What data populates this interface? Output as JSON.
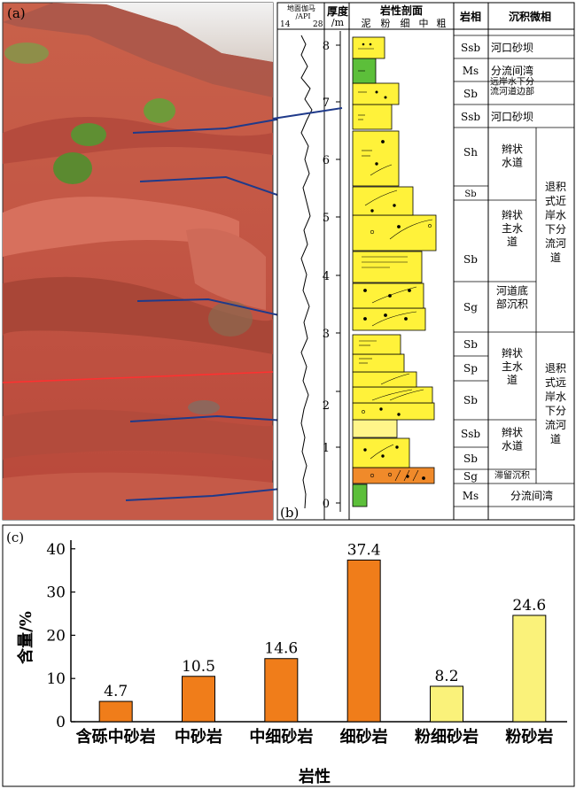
{
  "photo_panel": {
    "label": "(a)"
  },
  "section_panel": {
    "label": "(b)",
    "gamma_header_line1": "地面伽马",
    "gamma_header_line2": "/API",
    "gamma_min": "14",
    "gamma_max": "28",
    "thickness_header_line1": "厚度",
    "thickness_header_line2": "/m",
    "litho_header": "岩性剖面",
    "grain_scale": [
      "泥",
      "粉",
      "细",
      "中",
      "粗"
    ],
    "facies_header": "岩相",
    "microfacies_header": "沉积微相",
    "depth_ticks": [
      "0",
      "1",
      "2",
      "3",
      "4",
      "5",
      "6",
      "7",
      "8"
    ],
    "facies": [
      "Ssb",
      "Ms",
      "Sb",
      "Ssb",
      "Sh",
      "Sb",
      "Sb",
      "Sg",
      "Sb",
      "Sp",
      "Sb",
      "Ssb",
      "Sb",
      "Sg",
      "Ms"
    ],
    "microfacies_upper": [
      {
        "label": "河口砂坝"
      },
      {
        "label": "分流间湾"
      },
      {
        "label": "远岸水下分\n流河道边部"
      },
      {
        "label": "河口砂坝"
      },
      {
        "label": "辫状\n水道"
      },
      {
        "label": "辫状\n主水\n道"
      },
      {
        "label": "河道底\n部沉积"
      }
    ],
    "microfacies_lower": [
      {
        "label": "辫状\n主水\n道"
      },
      {
        "label": "辫状\n水道"
      },
      {
        "label": "滞留沉积"
      },
      {
        "label": "分流间湾"
      }
    ],
    "subenv_upper": "退积\n式近\n岸水\n下分\n流河\n道",
    "subenv_lower": "退积\n式远\n岸水\n下分\n流河\n道"
  },
  "chart_data": {
    "type": "bar",
    "panel_label": "(c)",
    "categories": [
      "含砾中砂岩",
      "中砂岩",
      "中细砂岩",
      "细砂岩",
      "粉细砂岩",
      "粉砂岩"
    ],
    "values": [
      4.7,
      10.5,
      14.6,
      37.4,
      8.2,
      24.6
    ],
    "value_labels": [
      "4.7",
      "10.5",
      "14.6",
      "37.4",
      "8.2",
      "24.6"
    ],
    "colors": [
      "#f07d1a",
      "#f07d1a",
      "#f07d1a",
      "#f07d1a",
      "#faf27a",
      "#faf27a"
    ],
    "xlabel": "岩性",
    "ylabel": "含量/%",
    "ylim": [
      0,
      42
    ],
    "yticks": [
      0,
      10,
      20,
      30,
      40
    ],
    "grid": false
  }
}
